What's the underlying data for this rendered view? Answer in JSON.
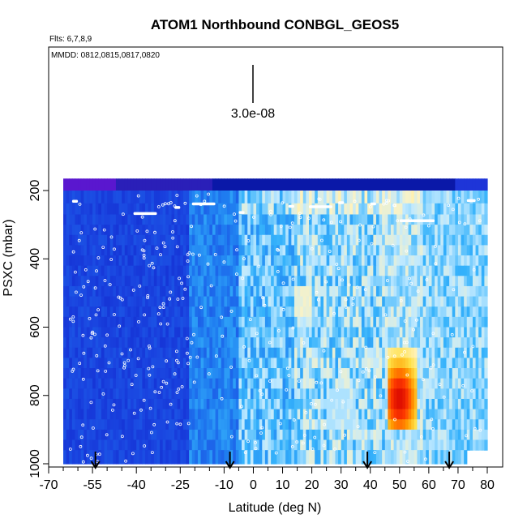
{
  "chart_data": {
    "type": "heatmap",
    "title": "ATOM1 Northbound CONBGL_GEOS5",
    "flights_note": "Flts: 6,7,8,9",
    "dates_note": "MMDD: 0812,0815,0817,0820",
    "scale_label": "3.0e-08",
    "xlabel": "Latitude (deg N)",
    "ylabel": "PSXC (mbar)",
    "xlim": [
      -70,
      80
    ],
    "ylim": [
      1000,
      100
    ],
    "x_ticks": [
      -70,
      -55,
      -40,
      -25,
      -10,
      0,
      10,
      20,
      30,
      40,
      50,
      60,
      70,
      80
    ],
    "x_minor_ticks": [
      -65,
      -60,
      -50,
      -45,
      -35,
      -30,
      -20,
      -15,
      -5,
      5,
      15,
      25,
      35,
      45,
      55,
      65,
      75
    ],
    "y_ticks": [
      200,
      400,
      600,
      800,
      1000
    ],
    "arrow_latitudes": [
      -54,
      -8,
      39,
      67
    ],
    "pressure_levels": [
      180,
      220,
      255,
      285,
      315,
      345,
      375,
      405,
      435,
      465,
      495,
      525,
      555,
      585,
      615,
      645,
      675,
      705,
      735,
      765,
      795,
      825,
      855,
      885,
      915,
      945,
      975
    ],
    "field_extent": {
      "lat": [
        -65,
        80
      ],
      "p": [
        165,
        1000
      ]
    },
    "colormap": [
      "#0b12c0",
      "#1a44e0",
      "#1f7cf0",
      "#35b2fb",
      "#bfe9ff",
      "#fff3c0",
      "#ffe046",
      "#ff9a00",
      "#ff3a00",
      "#d40000"
    ],
    "hotspot": {
      "lat": [
        46,
        56
      ],
      "p": [
        670,
        910
      ],
      "peak_lat": 50,
      "peak_p": 810
    },
    "upper_band_color": "#5a17cf"
  }
}
